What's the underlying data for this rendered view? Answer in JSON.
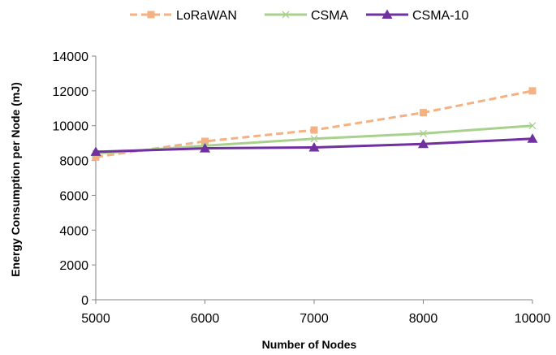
{
  "chart_data": {
    "type": "line",
    "title": "",
    "xlabel": "Number of Nodes",
    "ylabel": "Energy Consumption per Node (mJ)",
    "x": [
      5000,
      6000,
      7000,
      8000,
      10000
    ],
    "x_tick_labels": [
      "5000",
      "6000",
      "7000",
      "8000",
      "10000"
    ],
    "ylim": [
      0,
      14000
    ],
    "y_ticks": [
      0,
      2000,
      4000,
      6000,
      8000,
      10000,
      12000,
      14000
    ],
    "y_tick_labels": [
      "0",
      "2000",
      "4000",
      "6000",
      "8000",
      "10000",
      "12000",
      "14000"
    ],
    "grid": false,
    "legend_position": "top",
    "series": [
      {
        "name": "LoRaWAN",
        "values": [
          8200,
          9100,
          9750,
          10750,
          12000
        ],
        "color": "#f4b183",
        "line_style": "dashed",
        "marker": "square"
      },
      {
        "name": "CSMA",
        "values": [
          8400,
          8850,
          9250,
          9550,
          10000
        ],
        "color": "#a9d18e",
        "line_style": "solid",
        "marker": "x"
      },
      {
        "name": "CSMA-10",
        "values": [
          8500,
          8700,
          8750,
          8950,
          9250
        ],
        "color": "#7030a0",
        "line_style": "solid",
        "marker": "triangle"
      }
    ]
  }
}
